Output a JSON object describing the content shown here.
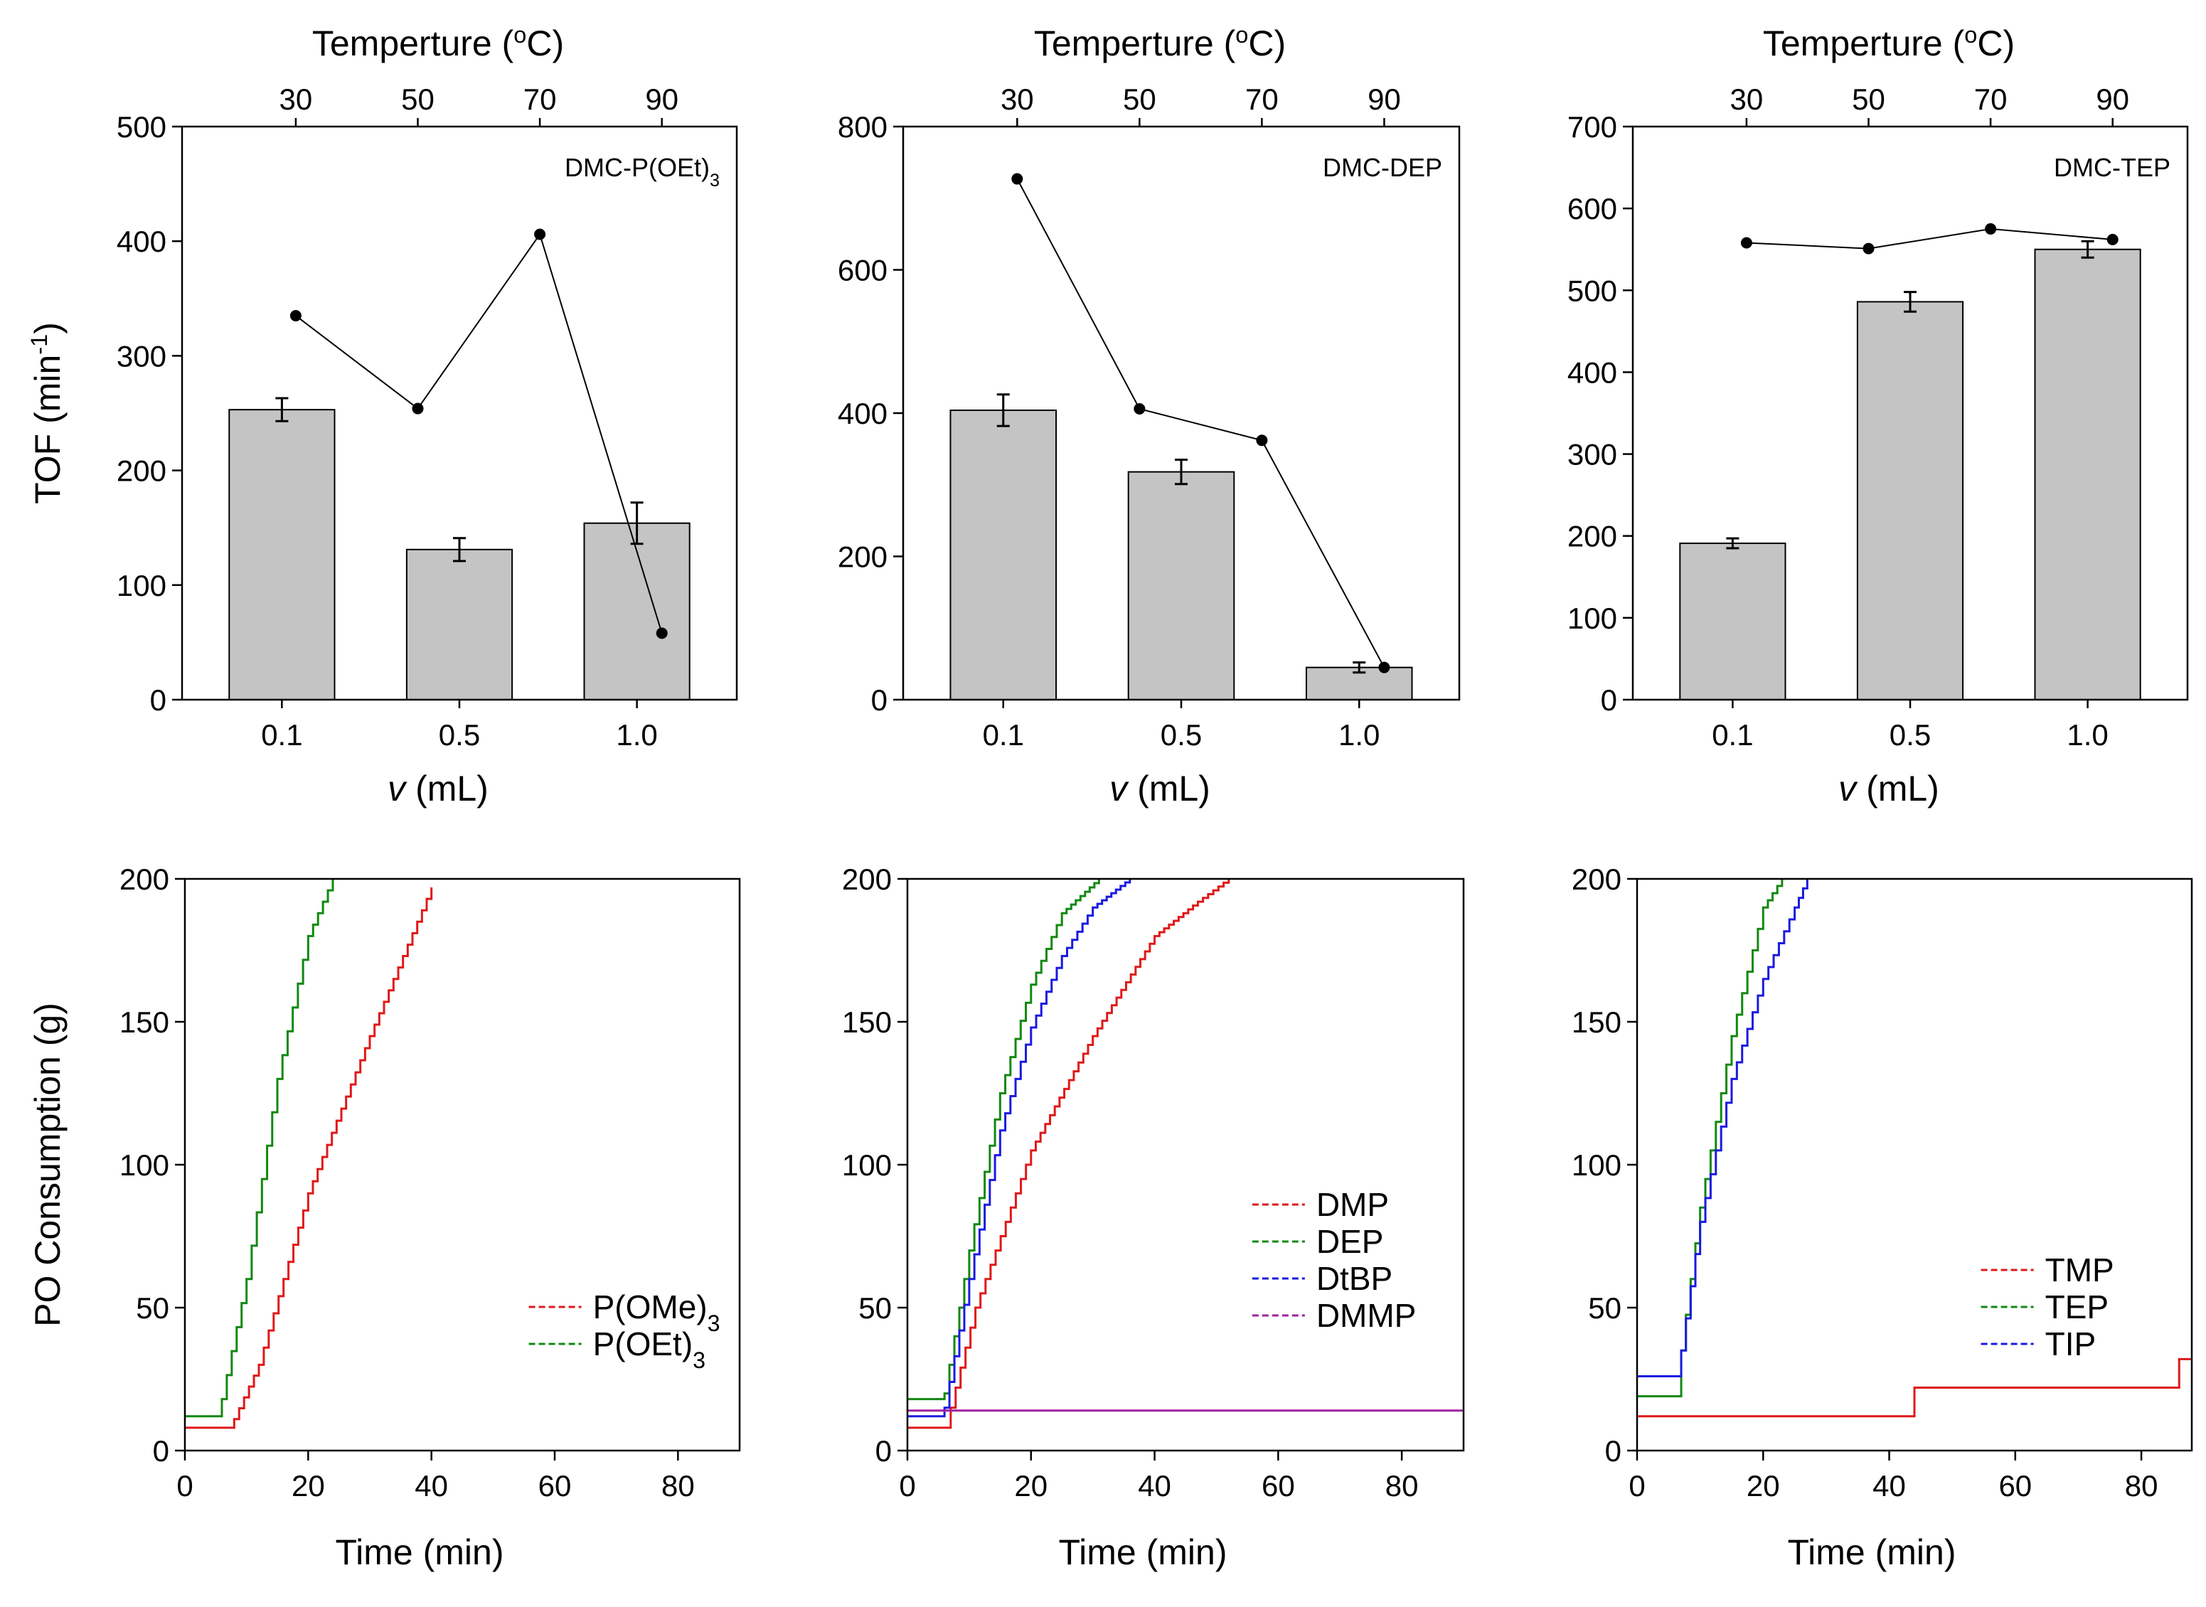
{
  "figure": {
    "top_axis_title": "Temperture (°C)",
    "bar_ylabel": "TOF (min⁻¹)",
    "bar_xlabel": "v (mL)",
    "line_ylabel": "PO Consumption (g)",
    "line_xlabel": "Time (min)"
  },
  "chart_data": [
    {
      "type": "bar",
      "label": "DMC-P(OEt)3",
      "categories": [
        "0.1",
        "0.5",
        "1.0"
      ],
      "values": [
        253,
        131,
        154
      ],
      "errors": [
        10,
        10,
        18
      ],
      "ylim": [
        0,
        500
      ],
      "yticks": [
        0,
        100,
        200,
        300,
        400,
        500
      ],
      "xlabel": "v (mL)",
      "ylabel": "TOF (min-1)",
      "top_axis": {
        "title": "Temperture (°C)",
        "ticks": [
          "30",
          "50",
          "70",
          "90"
        ]
      },
      "temperature_series": [
        {
          "temperature": 30,
          "value": 335
        },
        {
          "temperature": 50,
          "value": 254
        },
        {
          "temperature": 70,
          "value": 406
        },
        {
          "temperature": 90,
          "value": 58
        }
      ]
    },
    {
      "type": "bar",
      "label": "DMC-DEP",
      "categories": [
        "0.1",
        "0.5",
        "1.0"
      ],
      "values": [
        404,
        318,
        45
      ],
      "errors": [
        22,
        17,
        7
      ],
      "ylim": [
        0,
        800
      ],
      "yticks": [
        0,
        200,
        400,
        600,
        800
      ],
      "xlabel": "v (mL)",
      "ylabel": "",
      "top_axis": {
        "title": "Temperture (°C)",
        "ticks": [
          "30",
          "50",
          "70",
          "90"
        ]
      },
      "temperature_series": [
        {
          "temperature": 30,
          "value": 727
        },
        {
          "temperature": 50,
          "value": 406
        },
        {
          "temperature": 70,
          "value": 362
        },
        {
          "temperature": 90,
          "value": 45
        }
      ]
    },
    {
      "type": "bar",
      "label": "DMC-TEP",
      "categories": [
        "0.1",
        "0.5",
        "1.0"
      ],
      "values": [
        191,
        486,
        550
      ],
      "errors": [
        6,
        12,
        10
      ],
      "ylim": [
        0,
        700
      ],
      "yticks": [
        0,
        100,
        200,
        300,
        400,
        500,
        600,
        700
      ],
      "xlabel": "v (mL)",
      "ylabel": "",
      "top_axis": {
        "title": "Temperture (°C)",
        "ticks": [
          "30",
          "50",
          "70",
          "90"
        ]
      },
      "temperature_series": [
        {
          "temperature": 30,
          "value": 558
        },
        {
          "temperature": 50,
          "value": 551
        },
        {
          "temperature": 70,
          "value": 575
        },
        {
          "temperature": 90,
          "value": 562
        }
      ]
    },
    {
      "type": "line",
      "xlim": [
        0,
        90
      ],
      "ylim": [
        0,
        200
      ],
      "xticks": [
        0,
        20,
        40,
        60,
        80
      ],
      "yticks": [
        0,
        50,
        100,
        150,
        200
      ],
      "xlabel": "Time (min)",
      "ylabel": "PO Consumption (g)",
      "legend_position": "bottom-right",
      "series": [
        {
          "name": "P(OMe)3",
          "color": "#e01818",
          "x": [
            0,
            8,
            8,
            12,
            20,
            30,
            40
          ],
          "y": [
            8,
            8,
            11,
            30,
            90,
            145,
            197
          ]
        },
        {
          "name": "P(OEt)3",
          "color": "#118811",
          "x": [
            0,
            6,
            6,
            10,
            15,
            20,
            24
          ],
          "y": [
            12,
            12,
            18,
            60,
            130,
            180,
            200
          ]
        }
      ]
    },
    {
      "type": "line",
      "xlim": [
        0,
        90
      ],
      "ylim": [
        0,
        200
      ],
      "xticks": [
        0,
        20,
        40,
        60,
        80
      ],
      "yticks": [
        0,
        50,
        100,
        150,
        200
      ],
      "xlabel": "Time (min)",
      "ylabel": "",
      "legend_position": "bottom-right",
      "series": [
        {
          "name": "DMP",
          "color": "#e01818",
          "x": [
            0,
            7,
            7,
            11,
            20,
            30,
            40,
            47,
            52
          ],
          "y": [
            8,
            8,
            15,
            50,
            105,
            145,
            180,
            192,
            200
          ]
        },
        {
          "name": "DEP",
          "color": "#118811",
          "x": [
            0,
            6,
            6,
            10,
            15,
            20,
            25,
            31
          ],
          "y": [
            18,
            18,
            20,
            70,
            125,
            163,
            188,
            200
          ]
        },
        {
          "name": "DtBP",
          "color": "#1a1ae0",
          "x": [
            0,
            6,
            6,
            10,
            15,
            20,
            25,
            30,
            36
          ],
          "y": [
            12,
            12,
            15,
            60,
            112,
            148,
            173,
            190,
            200
          ]
        },
        {
          "name": "DMMP",
          "color": "#a020a0",
          "x": [
            0,
            90
          ],
          "y": [
            14,
            14
          ]
        }
      ]
    },
    {
      "type": "line",
      "xlim": [
        0,
        88
      ],
      "ylim": [
        0,
        200
      ],
      "xticks": [
        0,
        20,
        40,
        60,
        80
      ],
      "yticks": [
        0,
        50,
        100,
        150,
        200
      ],
      "xlabel": "Time (min)",
      "ylabel": "",
      "legend_position": "bottom-right",
      "series": [
        {
          "name": "TMP",
          "color": "#e01818",
          "x": [
            0,
            44,
            44,
            86,
            86,
            88
          ],
          "y": [
            12,
            12,
            22,
            22,
            32,
            32
          ]
        },
        {
          "name": "TEP",
          "color": "#118811",
          "x": [
            0,
            7,
            7,
            10,
            15,
            20,
            23
          ],
          "y": [
            19,
            19,
            35,
            85,
            145,
            190,
            200
          ]
        },
        {
          "name": "TIP",
          "color": "#1a1ae0",
          "x": [
            0,
            7,
            7,
            10,
            15,
            20,
            25,
            27
          ],
          "y": [
            26,
            26,
            35,
            80,
            130,
            165,
            190,
            200
          ]
        }
      ]
    }
  ]
}
